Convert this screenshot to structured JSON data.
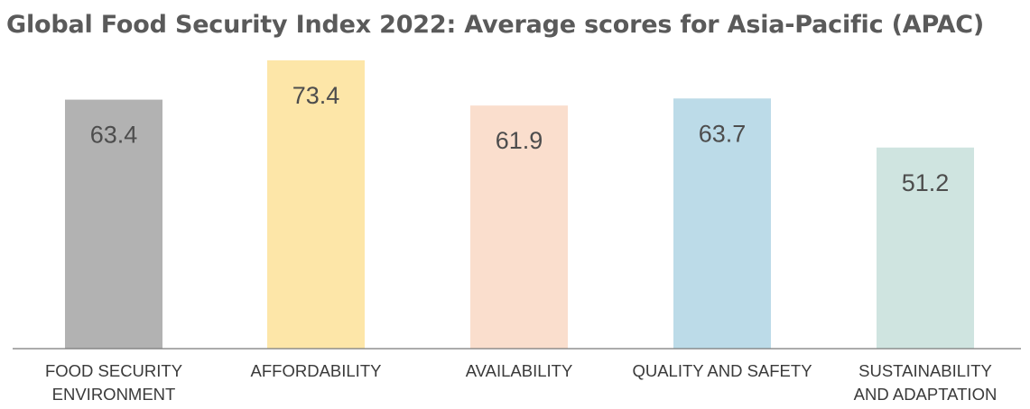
{
  "chart_data": {
    "type": "bar",
    "title": "Global Food Security Index 2022: Average scores for Asia-Pacific (APAC)",
    "xlabel": "",
    "ylabel": "",
    "categories": [
      [
        "FOOD SECURITY",
        "ENVIRONMENT"
      ],
      [
        "AFFORDABILITY"
      ],
      [
        "AVAILABILITY"
      ],
      [
        "QUALITY AND SAFETY"
      ],
      [
        "SUSTAINABILITY",
        "AND ADAPTATION"
      ]
    ],
    "values": [
      63.4,
      73.4,
      61.9,
      63.7,
      51.2
    ],
    "value_labels": [
      "63.4",
      "73.4",
      "61.9",
      "63.7",
      "51.2"
    ],
    "colors": [
      "#b2b2b2",
      "#fde6a8",
      "#fadecd",
      "#bcdbe8",
      "#cfe4e0"
    ],
    "ylim": [
      0,
      73.4
    ],
    "grid": false,
    "legend": "none",
    "baseline_color": "#7a7a7a"
  }
}
